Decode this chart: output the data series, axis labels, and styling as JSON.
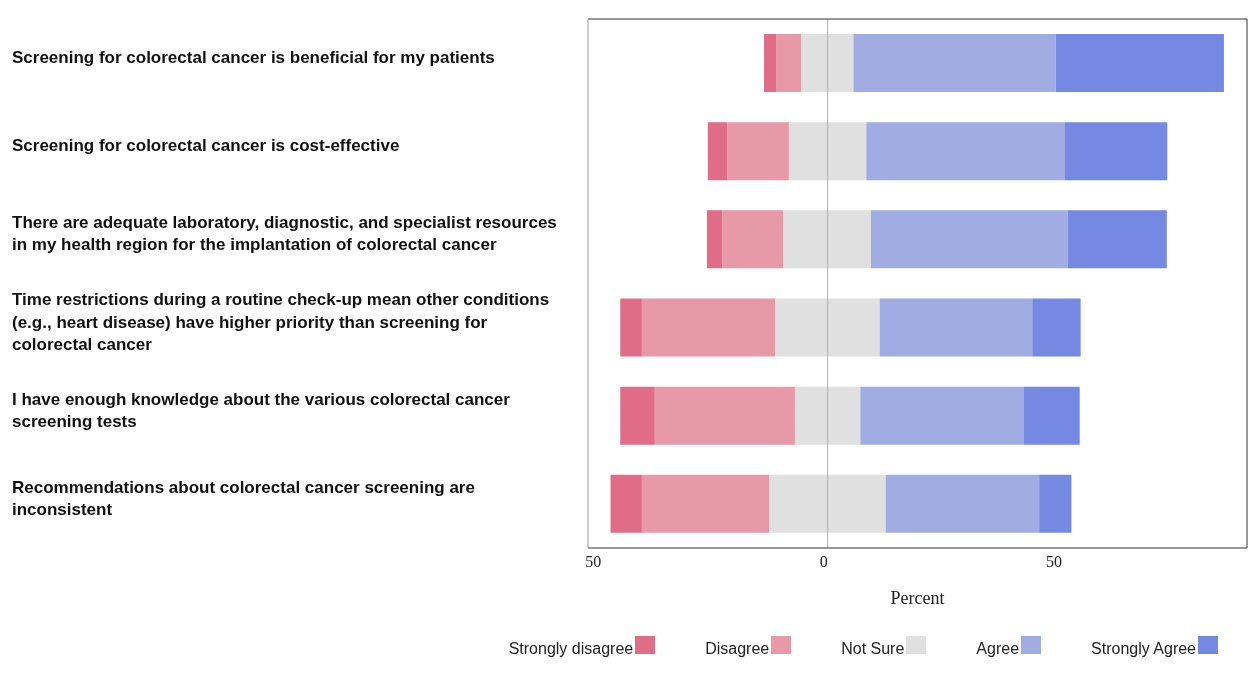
{
  "chart_data": {
    "type": "bar",
    "orientation": "horizontal",
    "xlabel": "Percent",
    "categories": [
      "Screening for colorectal cancer is beneficial for my patients",
      "Screening for colorectal cancer is cost-effective",
      "There are adequate laboratory, diagnostic, and specialist resources in my health region for the implantation of colorectal cancer",
      "Time restrictions during a routine check-up mean other conditions (e.g., heart disease) have higher priority than screening for colorectal cancer",
      "I have enough knowledge about the various colorectal cancer screening tests",
      "Recommendations about colorectal cancer screening are inconsistent"
    ],
    "series": [
      {
        "name": "Strongly disagree",
        "color": "#e06c88",
        "base": [
          -13.8,
          -26.0,
          -26.2,
          -45.0,
          -45.0,
          -47.1
        ],
        "values": [
          2.6,
          4.2,
          3.4,
          4.7,
          7.5,
          6.8
        ]
      },
      {
        "name": "Disagree",
        "color": "#e899a8",
        "base": [
          -11.2,
          -21.8,
          -22.8,
          -40.3,
          -37.5,
          -40.3
        ],
        "values": [
          5.5,
          13.4,
          13.2,
          28.9,
          30.4,
          27.6
        ]
      },
      {
        "name": "Not Sure",
        "color": "#e0e0e0",
        "base": [
          -5.7,
          -8.4,
          -9.6,
          -11.4,
          -7.1,
          -12.7
        ],
        "values": [
          11.3,
          16.8,
          19.0,
          22.7,
          14.2,
          25.3
        ]
      },
      {
        "name": "Agree",
        "color": "#a0ace2",
        "base": [
          5.6,
          8.4,
          9.4,
          11.3,
          7.1,
          12.6
        ],
        "values": [
          43.9,
          43.1,
          42.7,
          33.1,
          35.5,
          33.3
        ]
      },
      {
        "name": "Strongly Agree",
        "color": "#7589e2",
        "base": [
          49.5,
          51.5,
          52.1,
          44.4,
          42.6,
          45.9
        ],
        "values": [
          36.5,
          22.2,
          21.5,
          10.5,
          12.1,
          7.0
        ]
      }
    ],
    "xlim": [
      -52,
      91
    ],
    "xticks": [
      {
        "value": -50,
        "label": "50"
      },
      0,
      50
    ],
    "ref_lines": [
      {
        "axis": "x",
        "value": 0,
        "color": "#b0b0b0"
      }
    ],
    "grid": false,
    "legend": "bottom"
  }
}
